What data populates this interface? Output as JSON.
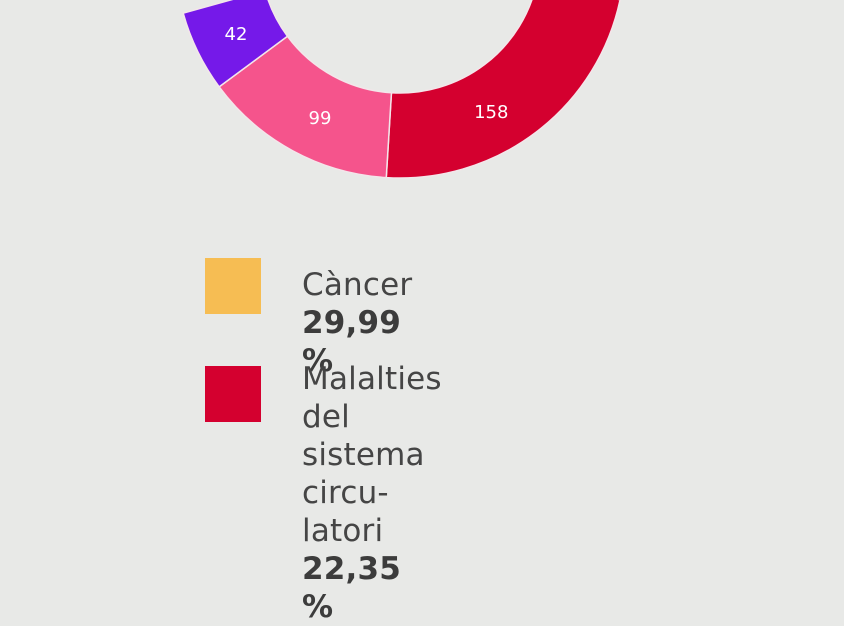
{
  "chart_data": {
    "type": "pie",
    "colors": {
      "cancer": "#f6bd53",
      "circulatory": "#d4002f",
      "pink": "#f5548c",
      "purple": "#7519e9"
    },
    "slices": [
      {
        "key": "circulatory",
        "value": 158,
        "label": "158",
        "color": "#d4002f"
      },
      {
        "key": "pink",
        "value": 99,
        "label": "99",
        "color": "#f5548c"
      },
      {
        "key": "purple",
        "value": 42,
        "label": "42",
        "color": "#7519e9"
      }
    ],
    "legend": [
      {
        "key": "cancer",
        "name": "Càncer",
        "percent": "29,99 %",
        "color": "#f6bd53"
      },
      {
        "key": "circulatory",
        "name": "Malalties del sistema circu-",
        "name_line2": "latori",
        "percent": "22,35 %",
        "color": "#d4002f"
      }
    ]
  }
}
